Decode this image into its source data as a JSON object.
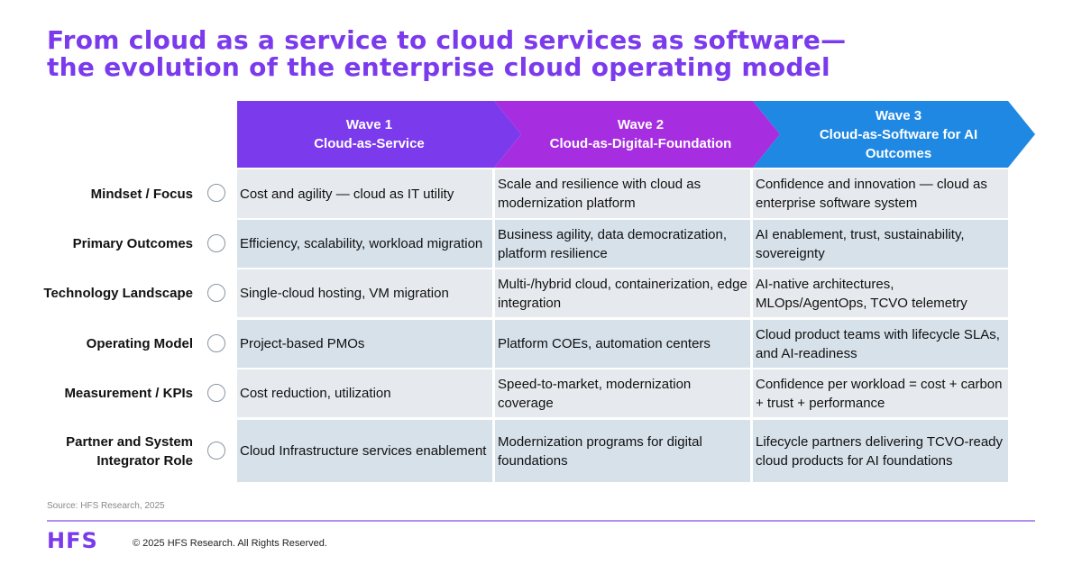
{
  "title": [
    "From cloud as a service to cloud services as software—",
    "the evolution of the enterprise cloud operating model"
  ],
  "waves": [
    {
      "label": "Wave 1",
      "name": "Cloud-as-Service",
      "color": "#7b3aec"
    },
    {
      "label": "Wave 2",
      "name": "Cloud-as-Digital-Foundation",
      "color": "#a62ee0"
    },
    {
      "label": "Wave 3",
      "name": "Cloud-as-Software for AI Outcomes",
      "color": "#1f88e3"
    }
  ],
  "rows": [
    {
      "label": "Mindset / Focus",
      "cells": [
        "Cost and agility — cloud as IT utility",
        "Scale and resilience with cloud as modernization platform",
        "Confidence and innovation — cloud as enterprise software system"
      ]
    },
    {
      "label": "Primary Outcomes",
      "cells": [
        "Efficiency, scalability, workload migration",
        "Business agility, data democratization, platform resilience",
        "AI enablement, trust, sustainability, sovereignty"
      ]
    },
    {
      "label": "Technology Landscape",
      "cells": [
        "Single-cloud hosting, VM migration",
        "Multi-/hybrid cloud, containerization, edge integration",
        "AI-native architectures, MLOps/AgentOps, TCVO telemetry"
      ]
    },
    {
      "label": "Operating Model",
      "cells": [
        "Project-based PMOs",
        "Platform COEs, automation centers",
        "Cloud product teams with lifecycle SLAs, and AI-readiness"
      ]
    },
    {
      "label": "Measurement / KPIs",
      "cells": [
        "Cost reduction, utilization",
        "Speed-to-market, modernization coverage",
        "Confidence per workload = cost + carbon + trust + performance"
      ]
    },
    {
      "label": "Partner and System Integrator Role",
      "cells": [
        "Cloud Infrastructure services enablement",
        "Modernization programs for digital foundations",
        "Lifecycle partners delivering TCVO-ready cloud products for AI foundations"
      ]
    }
  ],
  "source": "Source: HFS Research, 2025",
  "logo": "HFS",
  "copyright": "© 2025 HFS Research. All Rights Reserved."
}
